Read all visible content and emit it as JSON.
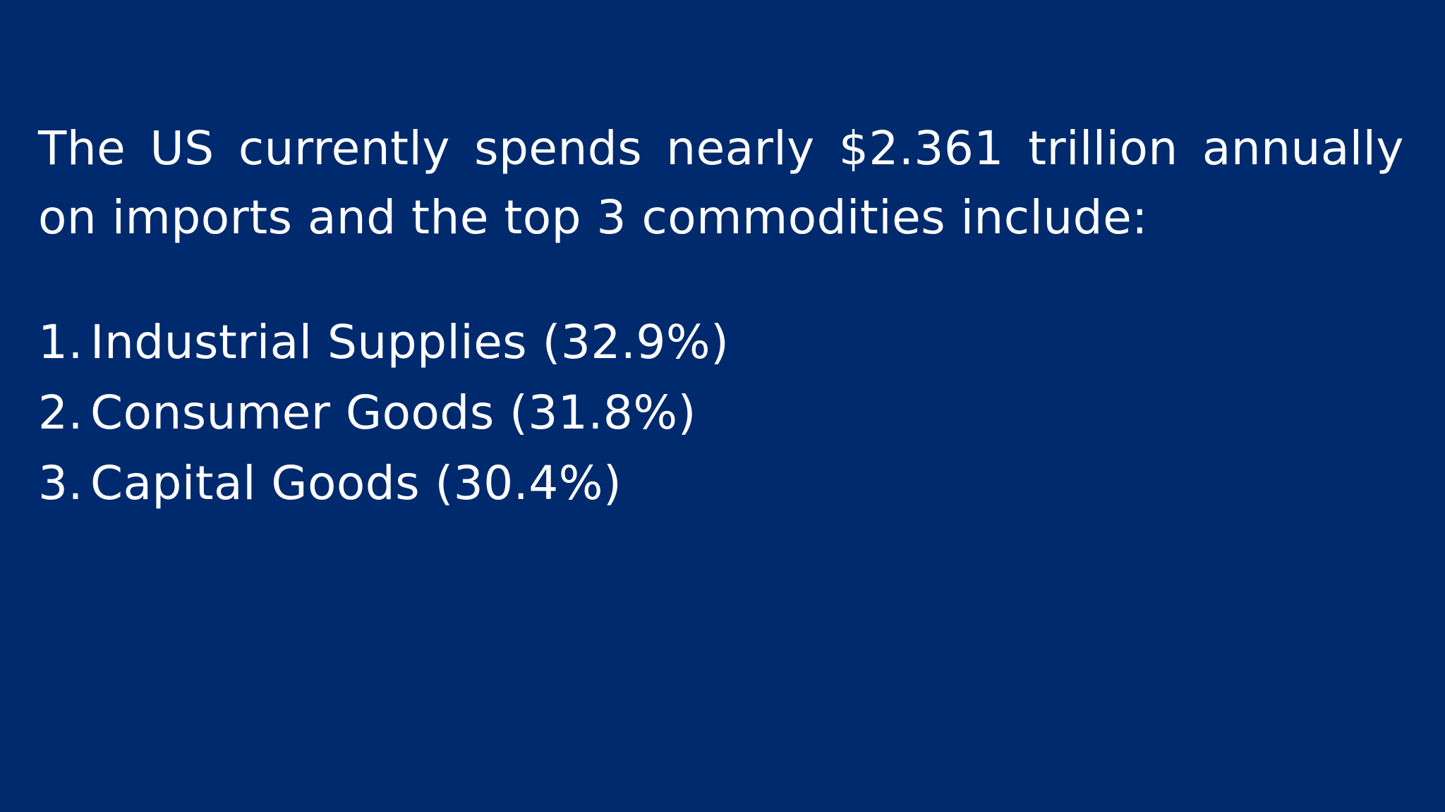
{
  "slide": {
    "background_color": "#002a6e",
    "text_color": "#ffffff",
    "intro_line_1": "The US currently spends nearly $2.361 trillion annually",
    "intro_line_2": "on imports and the top 3 commodities include:",
    "items": [
      {
        "number": "1.",
        "label": "Industrial Supplies (32.9%)"
      },
      {
        "number": "2.",
        "label": "Consumer Goods (31.8%)"
      },
      {
        "number": "3.",
        "label": "Capital Goods (30.4%)"
      }
    ]
  }
}
